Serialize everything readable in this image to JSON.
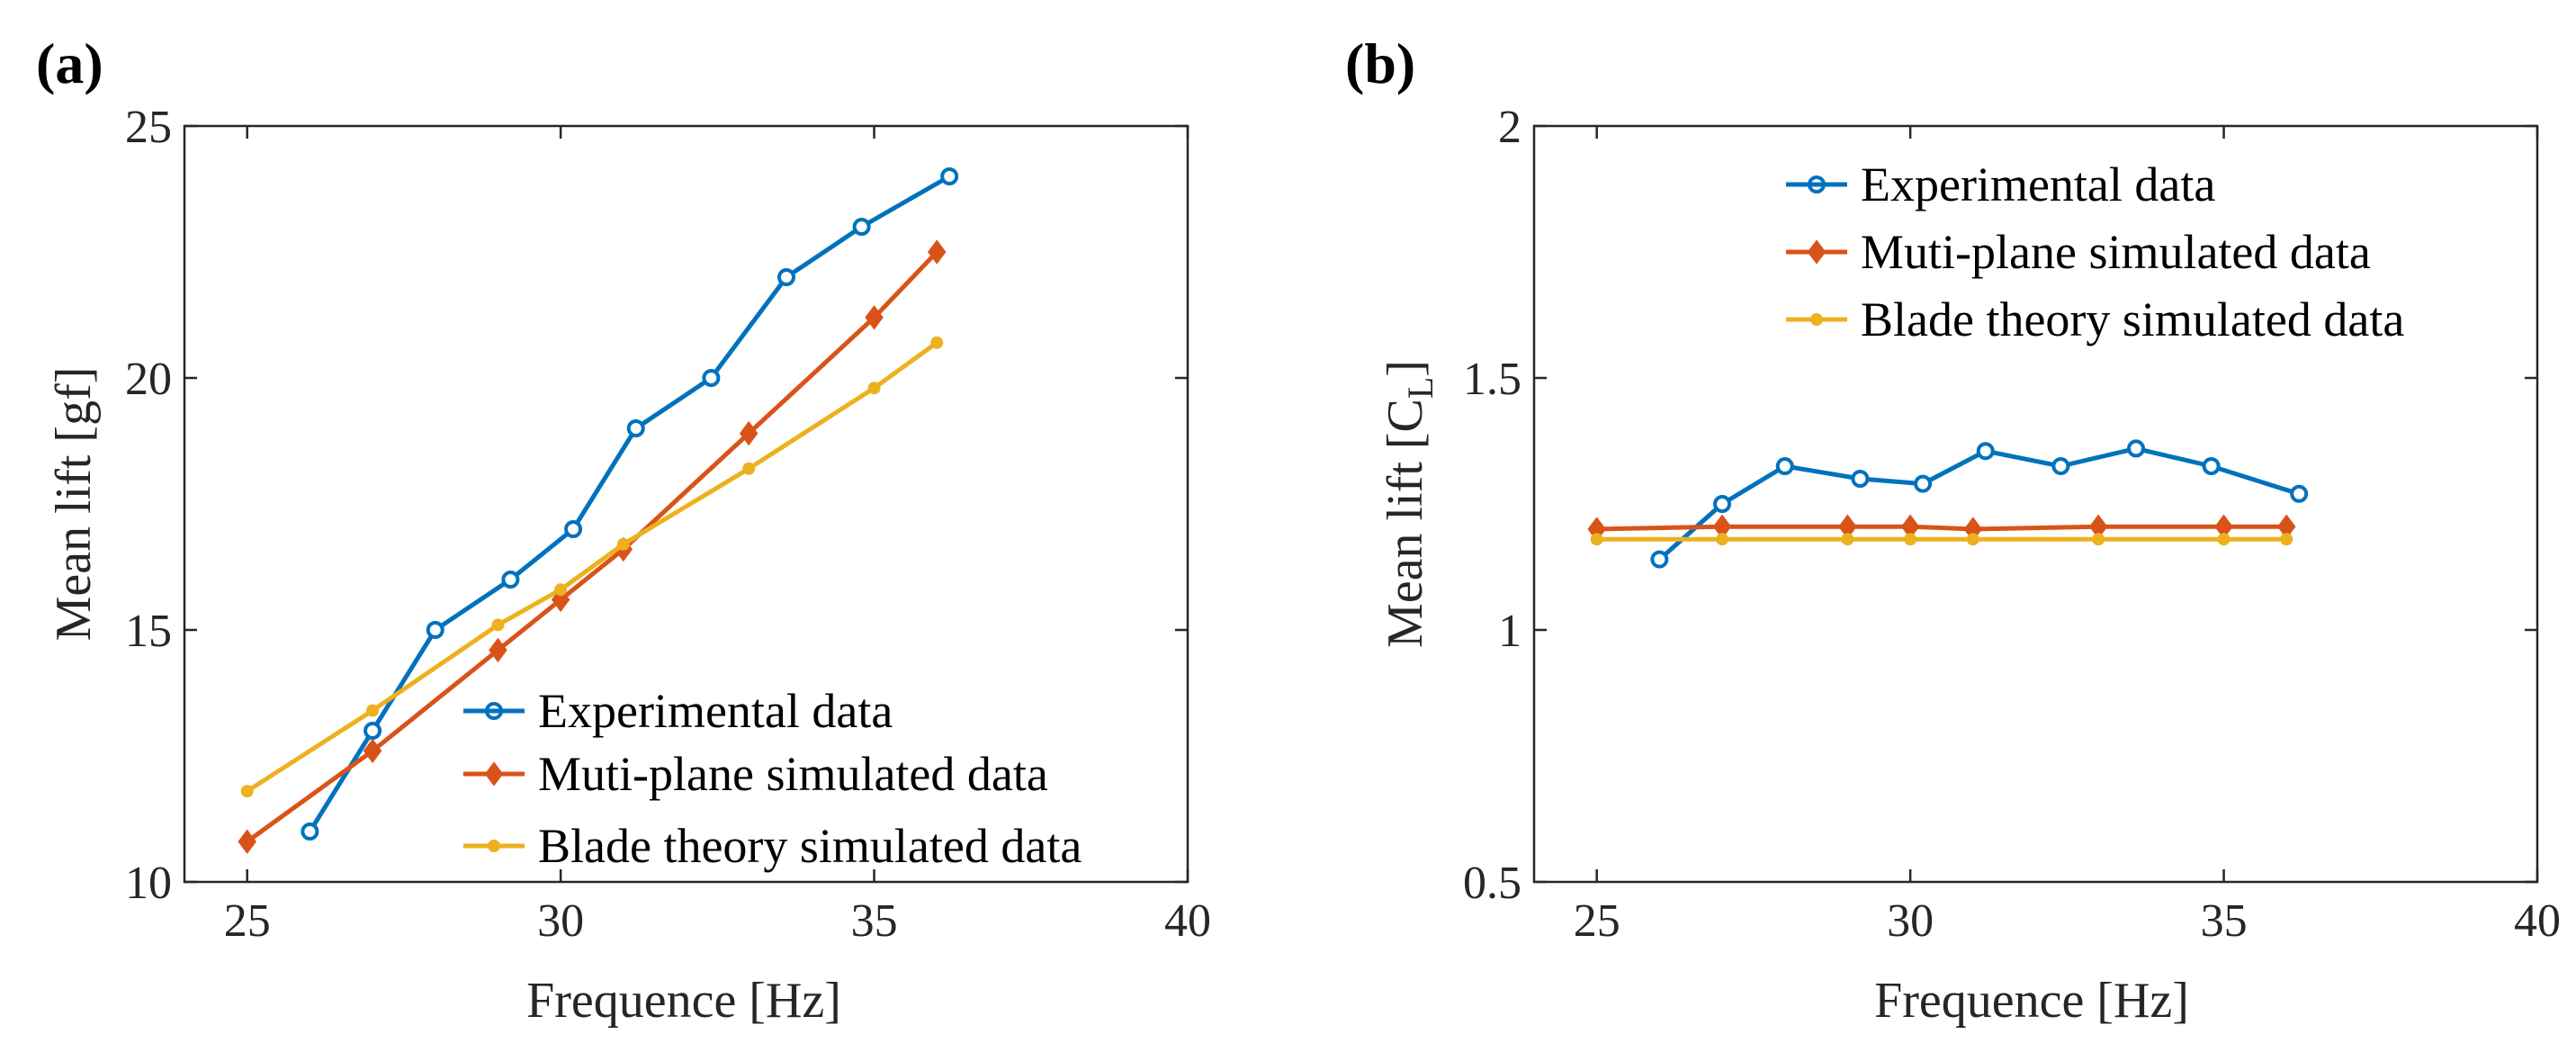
{
  "chart_data": [
    {
      "panel": "(a)",
      "type": "line",
      "xlabel": "Frequence [Hz]",
      "ylabel": "Mean lift [gf]",
      "xlim": [
        24,
        40
      ],
      "ylim": [
        10,
        25
      ],
      "xticks": [
        25,
        30,
        35,
        40
      ],
      "yticks": [
        10,
        15,
        20,
        25
      ],
      "legend_position": "bottom-right",
      "series": [
        {
          "name": "Experimental data",
          "color": "#0072BD",
          "marker": "circle",
          "x": [
            26,
            27,
            28,
            29.2,
            30.2,
            31.2,
            32.4,
            33.6,
            34.8,
            36.2
          ],
          "y": [
            11,
            13,
            15,
            16,
            17,
            19,
            20,
            22,
            23,
            24
          ]
        },
        {
          "name": "Muti-plane simulated data",
          "color": "#D95319",
          "marker": "diamond",
          "x": [
            25,
            27,
            29,
            30,
            31,
            33,
            35,
            36
          ],
          "y": [
            10.8,
            12.6,
            14.6,
            15.6,
            16.6,
            18.9,
            21.2,
            22.5
          ]
        },
        {
          "name": "Blade theory simulated data",
          "color": "#EDB120",
          "marker": "dot",
          "x": [
            25,
            27,
            29,
            30,
            31,
            33,
            35,
            36
          ],
          "y": [
            11.8,
            13.4,
            15.1,
            15.8,
            16.7,
            18.2,
            19.8,
            20.7
          ]
        }
      ]
    },
    {
      "panel": "(b)",
      "type": "line",
      "xlabel": "Frequence [Hz]",
      "ylabel_main": "Mean lift [C",
      "ylabel_sub": "L",
      "ylabel_end": "]",
      "xlim": [
        24,
        40
      ],
      "ylim": [
        0.5,
        2
      ],
      "xticks": [
        25,
        30,
        35,
        40
      ],
      "yticks": [
        0.5,
        1,
        1.5,
        2
      ],
      "ytick_labels": [
        "0.5",
        "1",
        "1.5",
        "2"
      ],
      "legend_position": "top",
      "series": [
        {
          "name": "Experimental data",
          "color": "#0072BD",
          "marker": "circle",
          "x": [
            26,
            27,
            28,
            29.2,
            30.2,
            31.2,
            32.4,
            33.6,
            34.8,
            36.2
          ],
          "y": [
            1.14,
            1.25,
            1.325,
            1.3,
            1.29,
            1.355,
            1.325,
            1.36,
            1.325,
            1.27
          ]
        },
        {
          "name": "Muti-plane simulated data",
          "color": "#D95319",
          "marker": "diamond",
          "x": [
            25,
            27,
            29,
            30,
            31,
            33,
            35,
            36
          ],
          "y": [
            1.2,
            1.205,
            1.205,
            1.205,
            1.2,
            1.205,
            1.205,
            1.205
          ]
        },
        {
          "name": "Blade theory simulated data",
          "color": "#EDB120",
          "marker": "dot",
          "x": [
            25,
            27,
            29,
            30,
            31,
            33,
            35,
            36
          ],
          "y": [
            1.18,
            1.18,
            1.18,
            1.18,
            1.18,
            1.18,
            1.18,
            1.18
          ]
        }
      ]
    }
  ]
}
